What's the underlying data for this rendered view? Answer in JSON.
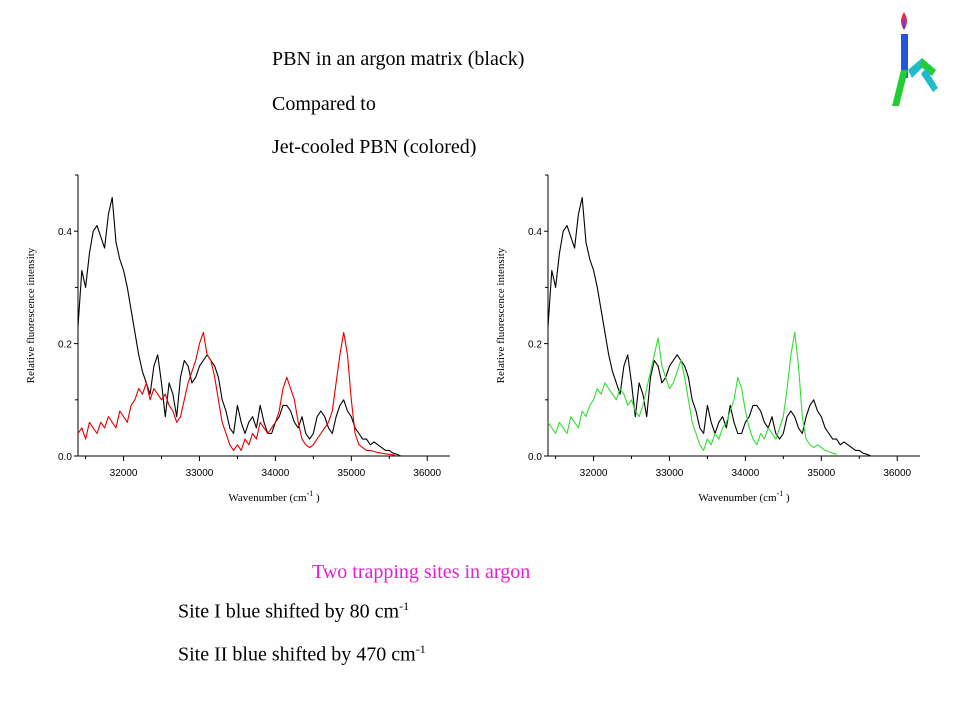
{
  "text": {
    "line1": "PBN in an argon matrix (black)",
    "line2": "Compared to",
    "line3": "Jet-cooled PBN (colored)",
    "subtitle": "Two trapping sites in argon",
    "site1_text": "Site I blue shifted by 80 cm",
    "site1_sup": "-1",
    "site2_text": "Site II blue shifted by 470 cm",
    "site2_sup": "-1"
  },
  "colors": {
    "subtitle": "#e020d0",
    "matrix_trace": "#000000",
    "jet_left": "#e00000",
    "jet_right": "#33dd33",
    "logo_green": "#22cc33",
    "logo_blue": "#2255dd",
    "logo_cyan": "#22bbcc",
    "logo_flame": "#e03050"
  },
  "logo": {
    "icon": "flame-logo-icon"
  },
  "chart_data": [
    {
      "type": "line",
      "xlabel": "Wavenumber (cm",
      "xlabel_sup": "-1",
      "xlabel_end": " )",
      "ylabel": "Relative fluorescence intensity",
      "xlim": [
        31400,
        36300
      ],
      "ylim": [
        0,
        0.5
      ],
      "xticks": [
        32000,
        33000,
        34000,
        35000,
        36000
      ],
      "yticks": [
        0.0,
        0.2,
        0.4
      ],
      "ytick_labels": [
        "0.0",
        "0.2",
        "0.4"
      ],
      "grid": false,
      "series": [
        {
          "color": "#000000",
          "x": [
            31400,
            31450,
            31500,
            31550,
            31600,
            31650,
            31700,
            31750,
            31800,
            31850,
            31900,
            31950,
            32000,
            32050,
            32100,
            32150,
            32200,
            32250,
            32300,
            32350,
            32400,
            32450,
            32500,
            32550,
            32600,
            32650,
            32700,
            32750,
            32800,
            32850,
            32900,
            32950,
            33000,
            33050,
            33100,
            33150,
            33200,
            33250,
            33300,
            33350,
            33400,
            33450,
            33500,
            33550,
            33600,
            33650,
            33700,
            33750,
            33800,
            33850,
            33900,
            33950,
            34000,
            34050,
            34100,
            34150,
            34200,
            34250,
            34300,
            34350,
            34400,
            34450,
            34500,
            34550,
            34600,
            34650,
            34700,
            34750,
            34800,
            34850,
            34900,
            34950,
            35000,
            35050,
            35100,
            35150,
            35200,
            35250,
            35300,
            35350,
            35400,
            35450,
            35500,
            35550,
            35600,
            35650
          ],
          "y": [
            0.23,
            0.33,
            0.3,
            0.36,
            0.4,
            0.41,
            0.39,
            0.37,
            0.43,
            0.46,
            0.38,
            0.35,
            0.33,
            0.3,
            0.26,
            0.22,
            0.18,
            0.15,
            0.13,
            0.11,
            0.16,
            0.18,
            0.13,
            0.07,
            0.13,
            0.11,
            0.07,
            0.14,
            0.17,
            0.16,
            0.13,
            0.14,
            0.16,
            0.17,
            0.18,
            0.17,
            0.16,
            0.14,
            0.1,
            0.08,
            0.05,
            0.04,
            0.09,
            0.06,
            0.04,
            0.06,
            0.07,
            0.05,
            0.09,
            0.06,
            0.04,
            0.04,
            0.06,
            0.07,
            0.09,
            0.09,
            0.08,
            0.06,
            0.05,
            0.07,
            0.04,
            0.03,
            0.04,
            0.07,
            0.08,
            0.07,
            0.05,
            0.04,
            0.07,
            0.09,
            0.1,
            0.08,
            0.07,
            0.05,
            0.04,
            0.03,
            0.03,
            0.02,
            0.025,
            0.02,
            0.015,
            0.01,
            0.01,
            0.005,
            0.003,
            0.0
          ]
        },
        {
          "color": "#e00000",
          "x": [
            31400,
            31450,
            31500,
            31550,
            31600,
            31650,
            31700,
            31750,
            31800,
            31850,
            31900,
            31950,
            32000,
            32050,
            32100,
            32150,
            32200,
            32250,
            32300,
            32350,
            32400,
            32450,
            32500,
            32550,
            32600,
            32650,
            32700,
            32750,
            32800,
            32850,
            32900,
            32950,
            33000,
            33050,
            33100,
            33150,
            33200,
            33250,
            33300,
            33350,
            33400,
            33450,
            33500,
            33550,
            33600,
            33650,
            33700,
            33750,
            33800,
            33850,
            33900,
            33950,
            34000,
            34050,
            34100,
            34150,
            34200,
            34250,
            34300,
            34350,
            34400,
            34450,
            34500,
            34550,
            34600,
            34650,
            34700,
            34750,
            34800,
            34850,
            34900,
            34950,
            35000,
            35050,
            35100,
            35150,
            35200,
            35250,
            35300,
            35350,
            35400,
            35450,
            35500,
            35550,
            35600
          ],
          "y": [
            0.04,
            0.05,
            0.03,
            0.06,
            0.05,
            0.04,
            0.06,
            0.05,
            0.07,
            0.06,
            0.05,
            0.08,
            0.07,
            0.06,
            0.09,
            0.1,
            0.12,
            0.11,
            0.13,
            0.1,
            0.12,
            0.11,
            0.1,
            0.11,
            0.09,
            0.08,
            0.06,
            0.07,
            0.1,
            0.13,
            0.15,
            0.17,
            0.2,
            0.22,
            0.18,
            0.17,
            0.14,
            0.1,
            0.06,
            0.04,
            0.02,
            0.01,
            0.02,
            0.01,
            0.03,
            0.02,
            0.04,
            0.03,
            0.06,
            0.05,
            0.04,
            0.05,
            0.06,
            0.08,
            0.12,
            0.14,
            0.12,
            0.1,
            0.06,
            0.03,
            0.02,
            0.015,
            0.02,
            0.03,
            0.04,
            0.05,
            0.06,
            0.08,
            0.13,
            0.18,
            0.22,
            0.18,
            0.1,
            0.04,
            0.02,
            0.015,
            0.01,
            0.01,
            0.008,
            0.006,
            0.005,
            0.004,
            0.003,
            0.002,
            0.0
          ]
        }
      ]
    },
    {
      "type": "line",
      "xlabel": "Wavenumber (cm",
      "xlabel_sup": "-1",
      "xlabel_end": " )",
      "ylabel": "Relative fluorescence intensity",
      "xlim": [
        31400,
        36300
      ],
      "ylim": [
        0,
        0.5
      ],
      "xticks": [
        32000,
        33000,
        34000,
        35000,
        36000
      ],
      "yticks": [
        0.0,
        0.2,
        0.4
      ],
      "ytick_labels": [
        "0.0",
        "0.2",
        "0.4"
      ],
      "grid": false,
      "series": [
        {
          "color": "#000000",
          "x": [
            31400,
            31450,
            31500,
            31550,
            31600,
            31650,
            31700,
            31750,
            31800,
            31850,
            31900,
            31950,
            32000,
            32050,
            32100,
            32150,
            32200,
            32250,
            32300,
            32350,
            32400,
            32450,
            32500,
            32550,
            32600,
            32650,
            32700,
            32750,
            32800,
            32850,
            32900,
            32950,
            33000,
            33050,
            33100,
            33150,
            33200,
            33250,
            33300,
            33350,
            33400,
            33450,
            33500,
            33550,
            33600,
            33650,
            33700,
            33750,
            33800,
            33850,
            33900,
            33950,
            34000,
            34050,
            34100,
            34150,
            34200,
            34250,
            34300,
            34350,
            34400,
            34450,
            34500,
            34550,
            34600,
            34650,
            34700,
            34750,
            34800,
            34850,
            34900,
            34950,
            35000,
            35050,
            35100,
            35150,
            35200,
            35250,
            35300,
            35350,
            35400,
            35450,
            35500,
            35550,
            35600,
            35650
          ],
          "y": [
            0.23,
            0.33,
            0.3,
            0.36,
            0.4,
            0.41,
            0.39,
            0.37,
            0.43,
            0.46,
            0.38,
            0.35,
            0.33,
            0.3,
            0.26,
            0.22,
            0.18,
            0.15,
            0.13,
            0.11,
            0.16,
            0.18,
            0.13,
            0.07,
            0.13,
            0.11,
            0.07,
            0.14,
            0.17,
            0.16,
            0.13,
            0.14,
            0.16,
            0.17,
            0.18,
            0.17,
            0.16,
            0.14,
            0.1,
            0.08,
            0.05,
            0.04,
            0.09,
            0.06,
            0.04,
            0.06,
            0.07,
            0.05,
            0.09,
            0.06,
            0.04,
            0.04,
            0.06,
            0.07,
            0.09,
            0.09,
            0.08,
            0.06,
            0.05,
            0.07,
            0.04,
            0.03,
            0.04,
            0.07,
            0.08,
            0.07,
            0.05,
            0.04,
            0.07,
            0.09,
            0.1,
            0.08,
            0.07,
            0.05,
            0.04,
            0.03,
            0.03,
            0.02,
            0.025,
            0.02,
            0.015,
            0.01,
            0.01,
            0.005,
            0.003,
            0.0
          ]
        },
        {
          "color": "#33dd33",
          "x": [
            31400,
            31450,
            31500,
            31550,
            31600,
            31650,
            31700,
            31750,
            31800,
            31850,
            31900,
            31950,
            32000,
            32050,
            32100,
            32150,
            32200,
            32250,
            32300,
            32350,
            32400,
            32450,
            32500,
            32550,
            32600,
            32650,
            32700,
            32750,
            32800,
            32850,
            32900,
            32950,
            33000,
            33050,
            33100,
            33150,
            33200,
            33250,
            33300,
            33350,
            33400,
            33450,
            33500,
            33550,
            33600,
            33650,
            33700,
            33750,
            33800,
            33850,
            33900,
            33950,
            34000,
            34050,
            34100,
            34150,
            34200,
            34250,
            34300,
            34350,
            34400,
            34450,
            34500,
            34550,
            34600,
            34650,
            34700,
            34750,
            34800,
            34850,
            34900,
            34950,
            35000,
            35050,
            35100,
            35150,
            35200
          ],
          "y": [
            0.06,
            0.05,
            0.04,
            0.06,
            0.05,
            0.04,
            0.07,
            0.06,
            0.05,
            0.08,
            0.07,
            0.09,
            0.1,
            0.12,
            0.11,
            0.13,
            0.12,
            0.11,
            0.1,
            0.12,
            0.11,
            0.09,
            0.1,
            0.08,
            0.07,
            0.09,
            0.12,
            0.15,
            0.18,
            0.21,
            0.16,
            0.14,
            0.12,
            0.13,
            0.15,
            0.17,
            0.14,
            0.1,
            0.06,
            0.04,
            0.02,
            0.01,
            0.03,
            0.02,
            0.04,
            0.03,
            0.05,
            0.06,
            0.08,
            0.1,
            0.14,
            0.12,
            0.08,
            0.05,
            0.03,
            0.02,
            0.04,
            0.03,
            0.05,
            0.04,
            0.03,
            0.05,
            0.07,
            0.12,
            0.18,
            0.22,
            0.16,
            0.07,
            0.03,
            0.02,
            0.015,
            0.02,
            0.015,
            0.01,
            0.008,
            0.005,
            0.003
          ]
        }
      ]
    }
  ]
}
